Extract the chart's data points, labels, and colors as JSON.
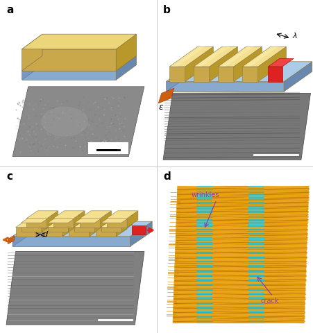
{
  "panel_labels": [
    "a",
    "b",
    "c",
    "d"
  ],
  "colors": {
    "gold_top": "#EDD57A",
    "gold_light": "#F5E090",
    "gold_side_front": "#C9A84C",
    "gold_side_right": "#B8982A",
    "blue_top": "#AACCE8",
    "blue_front": "#88AACE",
    "blue_right": "#6888B0",
    "blue_left": "#7898C0",
    "red": "#DD2222",
    "red_dark": "#AA1111",
    "orange": "#CC6010",
    "orange_dark": "#AA4008",
    "white": "#FFFFFF",
    "black": "#000000",
    "background": "#FFFFFF",
    "divider": "#CCCCCC",
    "sem_gray": "#909090",
    "sem_dark": "#606060",
    "sem_line": "#505050",
    "wrinkle_yellow": "#E8A820",
    "wrinkle_gold": "#D09010",
    "wrinkle_orange": "#C07000",
    "crack_cyan": "#20C0D0",
    "crack_cyan2": "#50D8E8",
    "purple": "#9040B0"
  }
}
